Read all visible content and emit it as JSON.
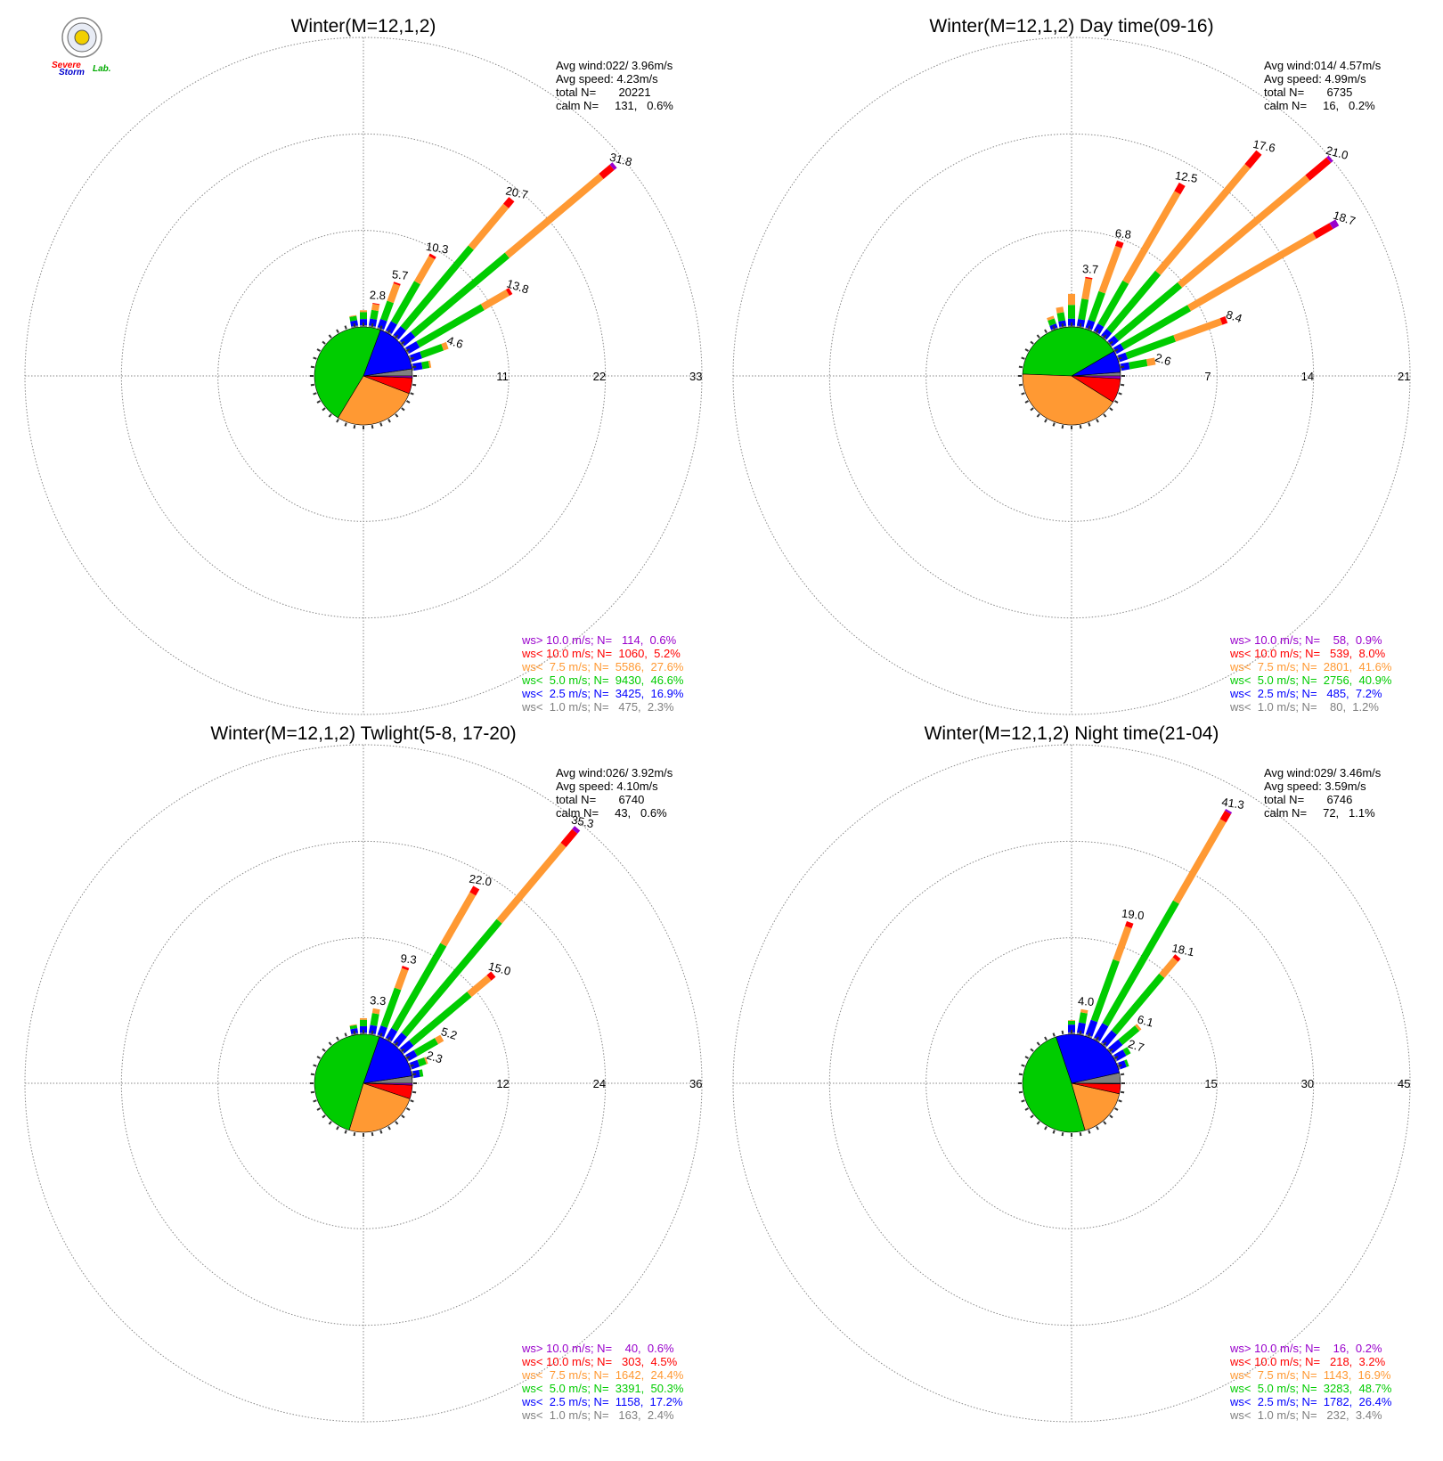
{
  "logo": {
    "line1": "Severe",
    "line2": "Storm",
    "line3": "Lab."
  },
  "bin_colors": [
    "#808080",
    "#0000ff",
    "#00cc00",
    "#ff9933",
    "#ff0000",
    "#9900cc"
  ],
  "stat_labels": {
    "avg_wind": "Avg wind:",
    "avg_speed": "Avg speed:",
    "total": "total N=",
    "calm": "calm N="
  },
  "chart_data": [
    {
      "type": "windrose",
      "title": "Winter(M=12,1,2)",
      "stats": {
        "avg_wind": "022/ 3.96m/s",
        "avg_speed": "4.23m/s",
        "total_n": "20221",
        "calm": "131,   0.6%"
      },
      "ring_labels": [
        "11",
        "22",
        "33"
      ],
      "rmax": 33,
      "legend": [
        {
          "bin": "ws> 10.0 m/s; N=",
          "n": "114",
          "pct": "0.6%",
          "color": "#9900cc"
        },
        {
          "bin": "ws< 10.0 m/s; N=",
          "n": "1060",
          "pct": "5.2%",
          "color": "#ff0000"
        },
        {
          "bin": "ws<  7.5 m/s; N=",
          "n": "5586",
          "pct": "27.6%",
          "color": "#ff9933"
        },
        {
          "bin": "ws<  5.0 m/s; N=",
          "n": "9430",
          "pct": "46.6%",
          "color": "#00cc00"
        },
        {
          "bin": "ws<  2.5 m/s; N=",
          "n": "3425",
          "pct": "16.9%",
          "color": "#0000ff"
        },
        {
          "bin": "ws<  1.0 m/s; N=",
          "n": "475",
          "pct": "2.3%",
          "color": "#808080"
        }
      ],
      "pie": [
        2.3,
        16.9,
        46.6,
        27.6,
        5.2,
        0.6
      ],
      "bars": [
        {
          "dir": 10,
          "total": 2.8,
          "label": "2.8",
          "values": [
            0.2,
            0.8,
            1.0,
            0.7,
            0.1,
            0.0
          ]
        },
        {
          "dir": 20,
          "total": 5.7,
          "label": "5.7",
          "values": [
            0.2,
            1.0,
            2.2,
            2.1,
            0.2,
            0.0
          ]
        },
        {
          "dir": 30,
          "total": 10.3,
          "label": "10.3",
          "values": [
            0.2,
            1.2,
            5.3,
            3.3,
            0.3,
            0.0
          ]
        },
        {
          "dir": 40,
          "total": 20.7,
          "label": "20.7",
          "values": [
            0.2,
            1.3,
            12.0,
            6.2,
            1.0,
            0.0
          ]
        },
        {
          "dir": 50,
          "total": 31.8,
          "label": "31.8",
          "values": [
            0.2,
            1.6,
            14.0,
            14.0,
            1.6,
            0.4
          ]
        },
        {
          "dir": 60,
          "total": 13.8,
          "label": "13.8",
          "values": [
            0.2,
            1.4,
            8.5,
            3.3,
            0.4,
            0.0
          ]
        },
        {
          "dir": 70,
          "total": 4.6,
          "label": "4.6",
          "values": [
            0.2,
            1.2,
            2.6,
            0.6,
            0.0,
            0.0
          ]
        },
        {
          "dir": 0,
          "total": 1.9,
          "label": "",
          "values": [
            0.2,
            0.7,
            0.8,
            0.2,
            0.0,
            0.0
          ]
        },
        {
          "dir": 80,
          "total": 2.2,
          "label": "",
          "values": [
            0.2,
            1.0,
            0.8,
            0.2,
            0.0,
            0.0
          ]
        },
        {
          "dir": 350,
          "total": 1.4,
          "label": "",
          "values": [
            0.2,
            0.6,
            0.5,
            0.1,
            0.0,
            0.0
          ]
        }
      ]
    },
    {
      "type": "windrose",
      "title": "Winter(M=12,1,2) Day time(09-16)",
      "stats": {
        "avg_wind": "014/ 4.57m/s",
        "avg_speed": "4.99m/s",
        "total_n": "6735",
        "calm": "16,   0.2%"
      },
      "ring_labels": [
        "7",
        "14",
        "21"
      ],
      "rmax": 21,
      "legend": [
        {
          "bin": "ws> 10.0 m/s; N=",
          "n": "58",
          "pct": "0.9%",
          "color": "#9900cc"
        },
        {
          "bin": "ws< 10.0 m/s; N=",
          "n": "539",
          "pct": "8.0%",
          "color": "#ff0000"
        },
        {
          "bin": "ws<  7.5 m/s; N=",
          "n": "2801",
          "pct": "41.6%",
          "color": "#ff9933"
        },
        {
          "bin": "ws<  5.0 m/s; N=",
          "n": "2756",
          "pct": "40.9%",
          "color": "#00cc00"
        },
        {
          "bin": "ws<  2.5 m/s; N=",
          "n": "485",
          "pct": "7.2%",
          "color": "#0000ff"
        },
        {
          "bin": "ws<  1.0 m/s; N=",
          "n": "80",
          "pct": "1.2%",
          "color": "#808080"
        }
      ],
      "pie": [
        1.2,
        7.2,
        40.9,
        41.6,
        8.0,
        0.9
      ],
      "bars": [
        {
          "dir": 350,
          "total": 1.5,
          "label": "",
          "values": [
            0.1,
            0.4,
            0.6,
            0.4,
            0.0,
            0.0
          ]
        },
        {
          "dir": 340,
          "total": 1.0,
          "label": "",
          "values": [
            0.1,
            0.3,
            0.4,
            0.2,
            0.0,
            0.0
          ]
        },
        {
          "dir": 0,
          "total": 2.4,
          "label": "",
          "values": [
            0.1,
            0.5,
            1.0,
            0.8,
            0.0,
            0.0
          ]
        },
        {
          "dir": 10,
          "total": 3.7,
          "label": "3.7",
          "values": [
            0.1,
            0.5,
            1.5,
            1.5,
            0.1,
            0.0
          ]
        },
        {
          "dir": 20,
          "total": 6.8,
          "label": "6.8",
          "values": [
            0.1,
            0.6,
            2.2,
            3.5,
            0.4,
            0.0
          ]
        },
        {
          "dir": 30,
          "total": 12.5,
          "label": "12.5",
          "values": [
            0.1,
            0.6,
            3.6,
            7.5,
            0.7,
            0.0
          ]
        },
        {
          "dir": 40,
          "total": 17.6,
          "label": "17.6",
          "values": [
            0.1,
            0.6,
            5.5,
            10.1,
            1.3,
            0.0
          ]
        },
        {
          "dir": 50,
          "total": 21.0,
          "label": "21.0",
          "values": [
            0.1,
            0.6,
            6.0,
            12.1,
            2.0,
            0.2
          ]
        },
        {
          "dir": 60,
          "total": 18.7,
          "label": "18.7",
          "values": [
            0.1,
            0.6,
            5.6,
            10.5,
            1.4,
            0.5
          ]
        },
        {
          "dir": 70,
          "total": 8.4,
          "label": "8.4",
          "values": [
            0.1,
            0.6,
            3.7,
            3.6,
            0.4,
            0.0
          ]
        },
        {
          "dir": 80,
          "total": 2.6,
          "label": "2.6",
          "values": [
            0.1,
            0.6,
            1.3,
            0.6,
            0.0,
            0.0
          ]
        }
      ]
    },
    {
      "type": "windrose",
      "title": "Winter(M=12,1,2) Twlight(5-8, 17-20)",
      "stats": {
        "avg_wind": "026/ 3.92m/s",
        "avg_speed": "4.10m/s",
        "total_n": "6740",
        "calm": "43,   0.6%"
      },
      "ring_labels": [
        "12",
        "24",
        "36"
      ],
      "rmax": 36,
      "legend": [
        {
          "bin": "ws> 10.0 m/s; N=",
          "n": "40",
          "pct": "0.6%",
          "color": "#9900cc"
        },
        {
          "bin": "ws< 10.0 m/s; N=",
          "n": "303",
          "pct": "4.5%",
          "color": "#ff0000"
        },
        {
          "bin": "ws<  7.5 m/s; N=",
          "n": "1642",
          "pct": "24.4%",
          "color": "#ff9933"
        },
        {
          "bin": "ws<  5.0 m/s; N=",
          "n": "3391",
          "pct": "50.3%",
          "color": "#00cc00"
        },
        {
          "bin": "ws<  2.5 m/s; N=",
          "n": "1158",
          "pct": "17.2%",
          "color": "#0000ff"
        },
        {
          "bin": "ws<  1.0 m/s; N=",
          "n": "163",
          "pct": "2.4%",
          "color": "#808080"
        }
      ],
      "pie": [
        2.4,
        17.2,
        50.3,
        24.4,
        4.5,
        0.6
      ],
      "bars": [
        {
          "dir": 0,
          "total": 2.0,
          "label": "",
          "values": [
            0.2,
            0.8,
            0.8,
            0.2,
            0.0,
            0.0
          ]
        },
        {
          "dir": 10,
          "total": 3.3,
          "label": "3.3",
          "values": [
            0.2,
            1.0,
            1.5,
            0.6,
            0.0,
            0.0
          ]
        },
        {
          "dir": 20,
          "total": 9.3,
          "label": "9.3",
          "values": [
            0.2,
            1.2,
            5.0,
            2.6,
            0.3,
            0.0
          ]
        },
        {
          "dir": 30,
          "total": 22.0,
          "label": "22.0",
          "values": [
            0.2,
            1.4,
            12.2,
            7.3,
            0.9,
            0.0
          ]
        },
        {
          "dir": 40,
          "total": 35.3,
          "label": "35.3",
          "values": [
            0.2,
            1.6,
            18.4,
            12.4,
            2.2,
            0.5
          ]
        },
        {
          "dir": 50,
          "total": 15.0,
          "label": "15.0",
          "values": [
            0.2,
            1.5,
            9.4,
            3.2,
            0.7,
            0.0
          ]
        },
        {
          "dir": 60,
          "total": 5.2,
          "label": "5.2",
          "values": [
            0.2,
            1.2,
            3.0,
            0.8,
            0.0,
            0.0
          ]
        },
        {
          "dir": 70,
          "total": 2.3,
          "label": "2.3",
          "values": [
            0.2,
            1.0,
            0.9,
            0.2,
            0.0,
            0.0
          ]
        },
        {
          "dir": 350,
          "total": 1.3,
          "label": "",
          "values": [
            0.2,
            0.6,
            0.4,
            0.1,
            0.0,
            0.0
          ]
        },
        {
          "dir": 80,
          "total": 1.4,
          "label": "",
          "values": [
            0.2,
            0.8,
            0.4,
            0.0,
            0.0,
            0.0
          ]
        }
      ]
    },
    {
      "type": "windrose",
      "title": "Winter(M=12,1,2) Night time(21-04)",
      "stats": {
        "avg_wind": "029/ 3.46m/s",
        "avg_speed": "3.59m/s",
        "total_n": "6746",
        "calm": "72,   1.1%"
      },
      "ring_labels": [
        "15",
        "30",
        "45"
      ],
      "rmax": 45,
      "legend": [
        {
          "bin": "ws> 10.0 m/s; N=",
          "n": "16",
          "pct": "0.2%",
          "color": "#9900cc"
        },
        {
          "bin": "ws< 10.0 m/s; N=",
          "n": "218",
          "pct": "3.2%",
          "color": "#ff0000"
        },
        {
          "bin": "ws<  7.5 m/s; N=",
          "n": "1143",
          "pct": "16.9%",
          "color": "#ff9933"
        },
        {
          "bin": "ws<  5.0 m/s; N=",
          "n": "3283",
          "pct": "48.7%",
          "color": "#00cc00"
        },
        {
          "bin": "ws<  2.5 m/s; N=",
          "n": "1782",
          "pct": "26.4%",
          "color": "#0000ff"
        },
        {
          "bin": "ws<  1.0 m/s; N=",
          "n": "232",
          "pct": "3.4%",
          "color": "#808080"
        }
      ],
      "pie": [
        3.4,
        26.4,
        48.7,
        16.9,
        3.2,
        0.2
      ],
      "bars": [
        {
          "dir": 10,
          "total": 4.0,
          "label": "4.0",
          "values": [
            0.3,
            1.6,
            1.6,
            0.5,
            0.0,
            0.0
          ]
        },
        {
          "dir": 20,
          "total": 19.0,
          "label": "19.0",
          "values": [
            0.3,
            2.4,
            10.0,
            5.5,
            0.8,
            0.0
          ]
        },
        {
          "dir": 30,
          "total": 41.3,
          "label": "41.3",
          "values": [
            0.3,
            2.6,
            22.0,
            14.6,
            1.5,
            0.3
          ]
        },
        {
          "dir": 40,
          "total": 18.1,
          "label": "18.1",
          "values": [
            0.3,
            2.4,
            11.5,
            3.3,
            0.6,
            0.0
          ]
        },
        {
          "dir": 50,
          "total": 6.1,
          "label": "6.1",
          "values": [
            0.3,
            2.0,
            3.4,
            0.4,
            0.0,
            0.0
          ]
        },
        {
          "dir": 60,
          "total": 2.7,
          "label": "2.7",
          "values": [
            0.3,
            1.6,
            0.8,
            0.0,
            0.0,
            0.0
          ]
        },
        {
          "dir": 0,
          "total": 2.2,
          "label": "",
          "values": [
            0.3,
            1.2,
            0.6,
            0.1,
            0.0,
            0.0
          ]
        },
        {
          "dir": 70,
          "total": 1.7,
          "label": "",
          "values": [
            0.3,
            1.0,
            0.4,
            0.0,
            0.0,
            0.0
          ]
        }
      ]
    }
  ]
}
